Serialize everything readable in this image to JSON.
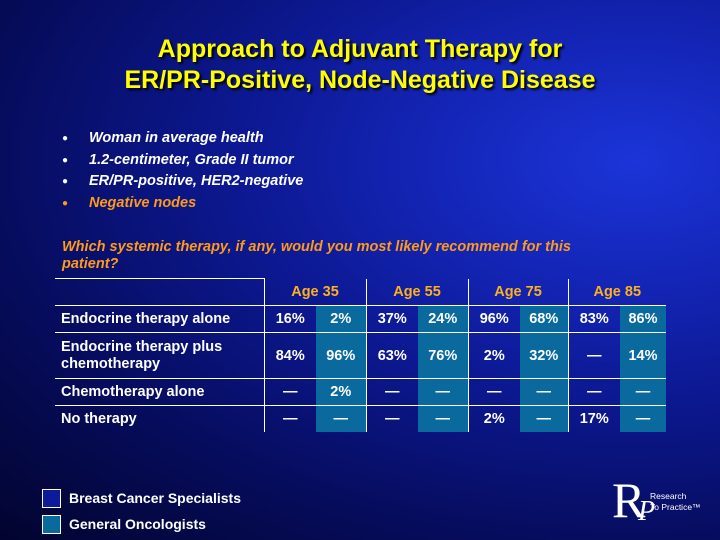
{
  "title": {
    "line1": "Approach to Adjuvant Therapy for",
    "line2": "ER/PR-Positive, Node-Negative Disease"
  },
  "bullets": [
    "Woman in average health",
    "1.2-centimeter, Grade II tumor",
    "ER/PR-positive, HER2-negative",
    "Negative nodes"
  ],
  "question": "Which systemic therapy, if any, would you most likely recommend for this patient?",
  "table": {
    "ages": [
      "Age 35",
      "Age 55",
      "Age 75",
      "Age 85"
    ],
    "rows": [
      {
        "label": "Endocrine therapy alone",
        "values": [
          "16%",
          "2%",
          "37%",
          "24%",
          "96%",
          "68%",
          "83%",
          "86%"
        ]
      },
      {
        "label": "Endocrine therapy plus chemotherapy",
        "values": [
          "84%",
          "96%",
          "63%",
          "76%",
          "2%",
          "32%",
          "—",
          "14%"
        ]
      },
      {
        "label": "Chemotherapy alone",
        "values": [
          "—",
          "2%",
          "—",
          "—",
          "—",
          "—",
          "—",
          "—"
        ]
      },
      {
        "label": "No therapy",
        "values": [
          "—",
          "—",
          "—",
          "—",
          "2%",
          "—",
          "17%",
          "—"
        ]
      }
    ]
  },
  "legend": [
    {
      "label": "Breast Cancer Specialists",
      "color": "#0d1a9a"
    },
    {
      "label": "General Oncologists",
      "color": "#0a6a9e"
    }
  ],
  "logo": {
    "letter_r": "R",
    "letter_p": "P",
    "line1": "Research",
    "line2": "To Practice™"
  }
}
